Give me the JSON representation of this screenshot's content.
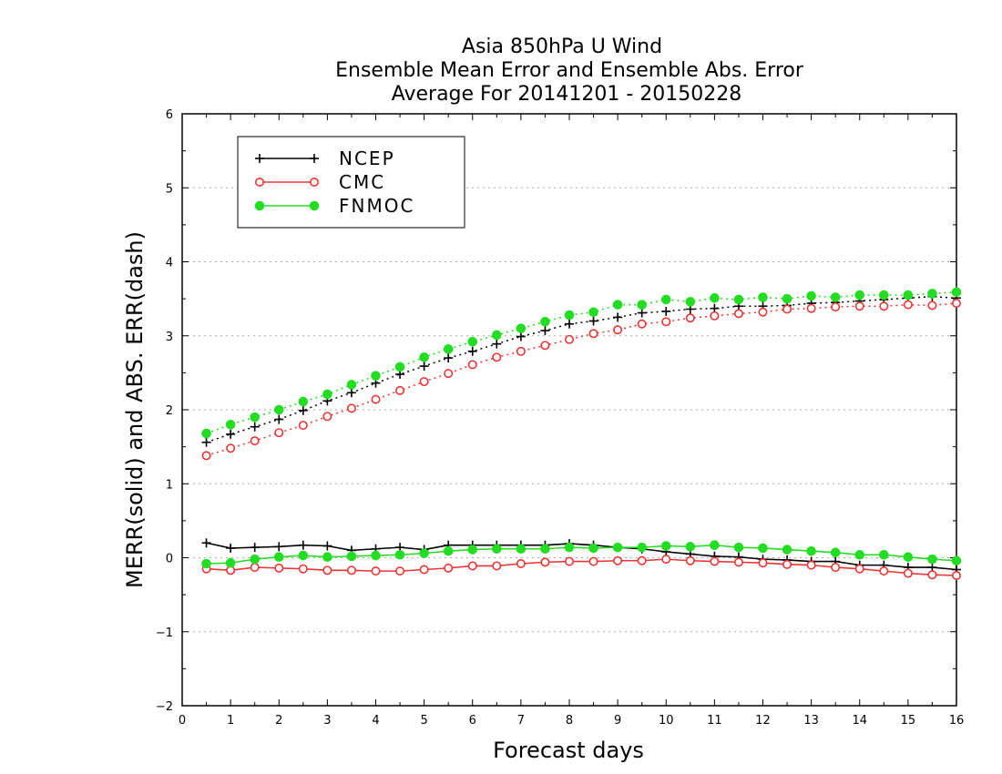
{
  "chart_data": {
    "type": "line",
    "title_lines": [
      "Asia 850hPa U Wind",
      "Ensemble Mean Error and Ensemble Abs. Error",
      "Average For 20141201 - 20150228"
    ],
    "xlabel": "Forecast days",
    "ylabel": "MERR(solid) and ABS. ERR(dash)",
    "xlim": [
      0,
      16
    ],
    "ylim": [
      -2,
      6
    ],
    "x_ticks": [
      "0",
      "1",
      "2",
      "3",
      "4",
      "5",
      "6",
      "7",
      "8",
      "9",
      "10",
      "11",
      "12",
      "13",
      "14",
      "15",
      "16"
    ],
    "y_ticks": [
      "−2",
      "−1",
      "0",
      "1",
      "2",
      "3",
      "4",
      "5",
      "6"
    ],
    "grid": "dotted horizontal lines",
    "legend_position": "top-left",
    "x": [
      0.5,
      1,
      1.5,
      2,
      2.5,
      3,
      3.5,
      4,
      4.5,
      5,
      5.5,
      6,
      6.5,
      7,
      7.5,
      8,
      8.5,
      9,
      9.5,
      10,
      10.5,
      11,
      11.5,
      12,
      12.5,
      13,
      13.5,
      14,
      14.5,
      15,
      15.5,
      16
    ],
    "series": [
      {
        "name": "NCEP",
        "color": "#000000",
        "marker": "plus",
        "merr": [
          0.2,
          0.13,
          0.14,
          0.15,
          0.17,
          0.16,
          0.1,
          0.12,
          0.14,
          0.11,
          0.17,
          0.17,
          0.17,
          0.17,
          0.17,
          0.19,
          0.17,
          0.14,
          0.12,
          0.08,
          0.05,
          0.02,
          0.01,
          -0.02,
          -0.03,
          -0.05,
          -0.05,
          -0.1,
          -0.1,
          -0.13,
          -0.13,
          -0.16
        ],
        "abs_err": [
          1.56,
          1.67,
          1.77,
          1.87,
          1.99,
          2.12,
          2.23,
          2.36,
          2.48,
          2.59,
          2.7,
          2.79,
          2.89,
          2.99,
          3.07,
          3.16,
          3.2,
          3.25,
          3.31,
          3.33,
          3.36,
          3.37,
          3.4,
          3.4,
          3.41,
          3.44,
          3.45,
          3.47,
          3.49,
          3.51,
          3.53,
          3.51
        ]
      },
      {
        "name": "CMC",
        "color": "#ee3333",
        "marker": "open-circle",
        "merr": [
          -0.15,
          -0.17,
          -0.13,
          -0.14,
          -0.15,
          -0.17,
          -0.17,
          -0.18,
          -0.18,
          -0.16,
          -0.14,
          -0.11,
          -0.11,
          -0.08,
          -0.06,
          -0.05,
          -0.05,
          -0.04,
          -0.04,
          -0.02,
          -0.04,
          -0.05,
          -0.06,
          -0.07,
          -0.09,
          -0.1,
          -0.13,
          -0.15,
          -0.18,
          -0.21,
          -0.23,
          -0.24
        ],
        "abs_err": [
          1.38,
          1.48,
          1.58,
          1.69,
          1.79,
          1.91,
          2.02,
          2.14,
          2.26,
          2.38,
          2.49,
          2.61,
          2.71,
          2.79,
          2.87,
          2.95,
          3.03,
          3.08,
          3.16,
          3.19,
          3.24,
          3.27,
          3.3,
          3.32,
          3.36,
          3.37,
          3.39,
          3.4,
          3.4,
          3.42,
          3.41,
          3.44
        ]
      },
      {
        "name": "FNMOC",
        "color": "#22dd22",
        "marker": "filled-circle",
        "merr": [
          -0.08,
          -0.07,
          -0.02,
          0.01,
          0.03,
          0.01,
          0.02,
          0.03,
          0.04,
          0.06,
          0.09,
          0.11,
          0.12,
          0.12,
          0.12,
          0.14,
          0.13,
          0.14,
          0.14,
          0.16,
          0.15,
          0.17,
          0.14,
          0.13,
          0.11,
          0.09,
          0.07,
          0.04,
          0.04,
          0.01,
          -0.02,
          -0.04
        ],
        "abs_err": [
          1.68,
          1.8,
          1.9,
          2.0,
          2.11,
          2.21,
          2.34,
          2.46,
          2.58,
          2.71,
          2.82,
          2.92,
          3.01,
          3.1,
          3.19,
          3.28,
          3.32,
          3.42,
          3.42,
          3.49,
          3.46,
          3.51,
          3.49,
          3.52,
          3.5,
          3.54,
          3.52,
          3.55,
          3.55,
          3.55,
          3.57,
          3.59
        ]
      }
    ]
  }
}
